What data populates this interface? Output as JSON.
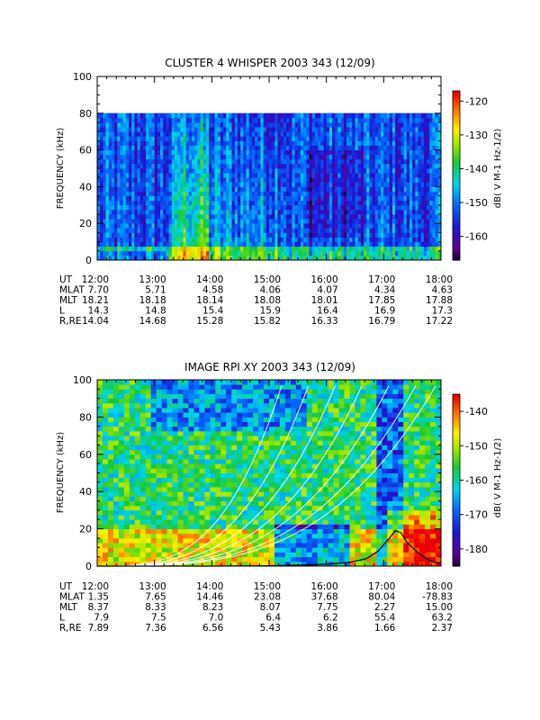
{
  "chart_data": [
    {
      "type": "heatmap",
      "title": "CLUSTER 4 WHISPER 2003 343 (12/09)",
      "ylabel": "FREQUENCY (kHz)",
      "ylim": [
        0,
        100
      ],
      "yticks": [
        "0",
        "20",
        "40",
        "60",
        "80",
        "100"
      ],
      "x_ticks": [
        "12:00",
        "13:00",
        "14:00",
        "15:00",
        "16:00",
        "17:00",
        "18:00"
      ],
      "data_fmax_khz": 80,
      "colorbar": {
        "label": "dB( V M-1 Hz-1/2)",
        "range": [
          -167,
          -117
        ],
        "ticks": [
          "-120",
          "-130",
          "-140",
          "-150",
          "-160"
        ]
      },
      "ephemeris": [
        {
          "name": "UT",
          "values": [
            "12:00",
            "13:00",
            "14:00",
            "15:00",
            "16:00",
            "17:00",
            "18:00"
          ]
        },
        {
          "name": "MLAT",
          "values": [
            "7.70",
            "5.71",
            "4.58",
            "4.06",
            "4.07",
            "4.34",
            "4.63"
          ]
        },
        {
          "name": "MLT",
          "values": [
            "18.21",
            "18.18",
            "18.14",
            "18.08",
            "18.01",
            "17.85",
            "17.88"
          ]
        },
        {
          "name": "L",
          "values": [
            "14.3",
            "14.8",
            "15.4",
            "15.9",
            "16.4",
            "16.9",
            "17.3"
          ]
        },
        {
          "name": "R,RE",
          "values": [
            "14.04",
            "14.68",
            "15.28",
            "15.82",
            "16.33",
            "16.79",
            "17.22"
          ]
        }
      ]
    },
    {
      "type": "heatmap",
      "title": "IMAGE RPI XY 2003 343 (12/09)",
      "ylabel": "FREQUENCY (kHz)",
      "ylim": [
        0,
        100
      ],
      "yticks": [
        "0",
        "20",
        "40",
        "60",
        "80",
        "100"
      ],
      "x_ticks": [
        "12:00",
        "13:00",
        "14:00",
        "15:00",
        "16:00",
        "17:00",
        "18:00"
      ],
      "colorbar": {
        "label": "dB( V M-1 Hz-1/2)",
        "range": [
          -185,
          -135
        ],
        "ticks": [
          "-140",
          "-150",
          "-160",
          "-170",
          "-180"
        ]
      },
      "overlay_curve_black": {
        "x_hours": [
          12.0,
          13.0,
          14.0,
          15.0,
          15.5,
          16.0,
          16.4,
          16.7,
          16.9,
          17.1,
          17.2,
          17.3,
          17.4,
          17.6,
          17.8,
          18.0
        ],
        "y_khz": [
          0,
          0,
          0,
          0.2,
          0.5,
          1,
          2,
          4,
          8,
          15,
          19,
          18,
          13,
          7,
          3,
          1
        ]
      },
      "ephemeris": [
        {
          "name": "UT",
          "values": [
            "12:00",
            "13:00",
            "14:00",
            "15:00",
            "16:00",
            "17:00",
            "18:00"
          ]
        },
        {
          "name": "MLAT",
          "values": [
            "1.35",
            "7.65",
            "14.46",
            "23.08",
            "37.68",
            "80.04",
            "-78.83"
          ]
        },
        {
          "name": "MLT",
          "values": [
            "8.37",
            "8.33",
            "8.23",
            "8.07",
            "7.75",
            "2.27",
            "15.00"
          ]
        },
        {
          "name": "L",
          "values": [
            "7.9",
            "7.5",
            "7.0",
            "6.4",
            "6.2",
            "55.4",
            "63.2"
          ]
        },
        {
          "name": "R,RE",
          "values": [
            "7.89",
            "7.36",
            "6.56",
            "5.43",
            "3.86",
            "1.66",
            "2.37"
          ]
        }
      ]
    }
  ]
}
